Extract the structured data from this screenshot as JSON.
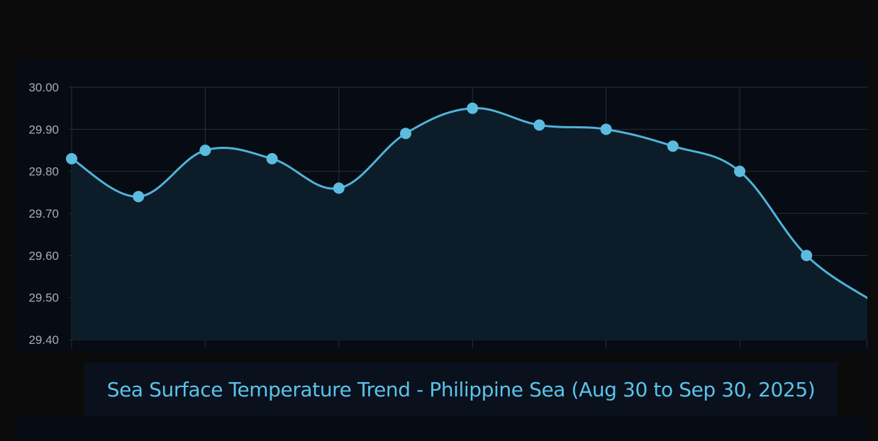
{
  "chart_data": {
    "type": "area",
    "title": "Sea Surface Temperature Trend - Philippine Sea (Aug 30 to Sep 30, 2025)",
    "xlabel": "",
    "ylabel": "",
    "ylim": [
      29.4,
      30.0
    ],
    "y_ticks": [
      "30.00",
      "29.90",
      "29.80",
      "29.70",
      "29.60",
      "29.50",
      "29.40"
    ],
    "x_tick_labels": [],
    "grid": true,
    "series": [
      {
        "values": [
          29.83,
          29.74,
          29.85,
          29.83,
          29.76,
          29.89,
          29.95,
          29.91,
          29.9,
          29.86,
          29.8,
          29.6,
          29.49
        ],
        "point_markers": [
          true,
          true,
          true,
          true,
          true,
          true,
          true,
          true,
          true,
          true,
          true,
          true,
          false
        ]
      }
    ],
    "colors": {
      "line": "#4fb3d9",
      "marker": "#5bbcdf",
      "fill": "#0c1c29",
      "grid": "#26313f",
      "tick_label": "#a7adb6",
      "title": "#5ac3ea"
    }
  }
}
